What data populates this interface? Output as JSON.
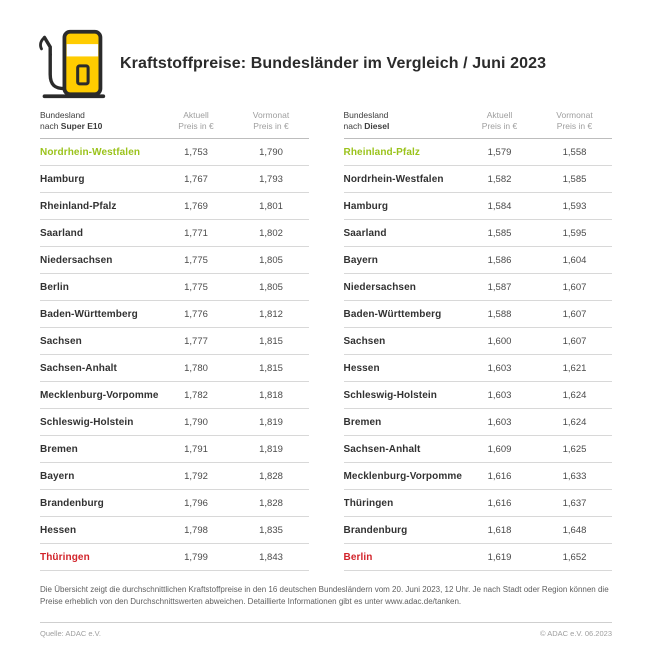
{
  "header": {
    "title": "Kraftstoffpreise: Bundesländer im Vergleich / Juni 2023"
  },
  "columns": {
    "current": "Aktuell",
    "previous": "Vormonat",
    "unit": "Preis in €"
  },
  "tables": [
    {
      "header_line1": "Bundesland",
      "header_line2_prefix": "nach ",
      "header_line2_bold": "Super E10",
      "rows": [
        {
          "state": "Nordrhein-Westfalen",
          "aktuell": "1,753",
          "vormonat": "1,790",
          "highlight": "green"
        },
        {
          "state": "Hamburg",
          "aktuell": "1,767",
          "vormonat": "1,793",
          "highlight": ""
        },
        {
          "state": "Rheinland-Pfalz",
          "aktuell": "1,769",
          "vormonat": "1,801",
          "highlight": ""
        },
        {
          "state": "Saarland",
          "aktuell": "1,771",
          "vormonat": "1,802",
          "highlight": ""
        },
        {
          "state": "Niedersachsen",
          "aktuell": "1,775",
          "vormonat": "1,805",
          "highlight": ""
        },
        {
          "state": "Berlin",
          "aktuell": "1,775",
          "vormonat": "1,805",
          "highlight": ""
        },
        {
          "state": "Baden-Württemberg",
          "aktuell": "1,776",
          "vormonat": "1,812",
          "highlight": ""
        },
        {
          "state": "Sachsen",
          "aktuell": "1,777",
          "vormonat": "1,815",
          "highlight": ""
        },
        {
          "state": "Sachsen-Anhalt",
          "aktuell": "1,780",
          "vormonat": "1,815",
          "highlight": ""
        },
        {
          "state": "Mecklenburg-Vorpommern",
          "aktuell": "1,782",
          "vormonat": "1,818",
          "highlight": ""
        },
        {
          "state": "Schleswig-Holstein",
          "aktuell": "1,790",
          "vormonat": "1,819",
          "highlight": ""
        },
        {
          "state": "Bremen",
          "aktuell": "1,791",
          "vormonat": "1,819",
          "highlight": ""
        },
        {
          "state": "Bayern",
          "aktuell": "1,792",
          "vormonat": "1,828",
          "highlight": ""
        },
        {
          "state": "Brandenburg",
          "aktuell": "1,796",
          "vormonat": "1,828",
          "highlight": ""
        },
        {
          "state": "Hessen",
          "aktuell": "1,798",
          "vormonat": "1,835",
          "highlight": ""
        },
        {
          "state": "Thüringen",
          "aktuell": "1,799",
          "vormonat": "1,843",
          "highlight": "red"
        }
      ]
    },
    {
      "header_line1": "Bundesland",
      "header_line2_prefix": "nach ",
      "header_line2_bold": "Diesel",
      "rows": [
        {
          "state": "Rheinland-Pfalz",
          "aktuell": "1,579",
          "vormonat": "1,558",
          "highlight": "green"
        },
        {
          "state": "Nordrhein-Westfalen",
          "aktuell": "1,582",
          "vormonat": "1,585",
          "highlight": ""
        },
        {
          "state": "Hamburg",
          "aktuell": "1,584",
          "vormonat": "1,593",
          "highlight": ""
        },
        {
          "state": "Saarland",
          "aktuell": "1,585",
          "vormonat": "1,595",
          "highlight": ""
        },
        {
          "state": "Bayern",
          "aktuell": "1,586",
          "vormonat": "1,604",
          "highlight": ""
        },
        {
          "state": "Niedersachsen",
          "aktuell": "1,587",
          "vormonat": "1,607",
          "highlight": ""
        },
        {
          "state": "Baden-Württemberg",
          "aktuell": "1,588",
          "vormonat": "1,607",
          "highlight": ""
        },
        {
          "state": "Sachsen",
          "aktuell": "1,600",
          "vormonat": "1,607",
          "highlight": ""
        },
        {
          "state": "Hessen",
          "aktuell": "1,603",
          "vormonat": "1,621",
          "highlight": ""
        },
        {
          "state": "Schleswig-Holstein",
          "aktuell": "1,603",
          "vormonat": "1,624",
          "highlight": ""
        },
        {
          "state": "Bremen",
          "aktuell": "1,603",
          "vormonat": "1,624",
          "highlight": ""
        },
        {
          "state": "Sachsen-Anhalt",
          "aktuell": "1,609",
          "vormonat": "1,625",
          "highlight": ""
        },
        {
          "state": "Mecklenburg-Vorpommern",
          "aktuell": "1,616",
          "vormonat": "1,633",
          "highlight": ""
        },
        {
          "state": "Thüringen",
          "aktuell": "1,616",
          "vormonat": "1,637",
          "highlight": ""
        },
        {
          "state": "Brandenburg",
          "aktuell": "1,618",
          "vormonat": "1,648",
          "highlight": ""
        },
        {
          "state": "Berlin",
          "aktuell": "1,619",
          "vormonat": "1,652",
          "highlight": "red"
        }
      ]
    }
  ],
  "note": {
    "text": "Die Übersicht zeigt die durchschnittlichen Kraftstoffpreise in den 16 deutschen Bundesländern vom 20. Juni 2023, 12 Uhr. Je nach Stadt oder Region können die Preise erheblich von den Durchschnittswerten abweichen. Detaillierte Informationen gibt es unter www.adac.de/tanken."
  },
  "footer": {
    "source": "Quelle: ADAC e.V.",
    "copyright": "© ADAC e.V. 06.2023"
  },
  "colors": {
    "green": "#9bc31c",
    "red": "#d2232a",
    "yellow": "#ffcc00",
    "outline": "#2b2b2b"
  },
  "chart_data": [
    {
      "type": "table",
      "title": "Bundesland nach Super E10",
      "columns": [
        "Bundesland",
        "Aktuell Preis in €",
        "Vormonat Preis in €"
      ],
      "rows": [
        [
          "Nordrhein-Westfalen",
          1.753,
          1.79
        ],
        [
          "Hamburg",
          1.767,
          1.793
        ],
        [
          "Rheinland-Pfalz",
          1.769,
          1.801
        ],
        [
          "Saarland",
          1.771,
          1.802
        ],
        [
          "Niedersachsen",
          1.775,
          1.805
        ],
        [
          "Berlin",
          1.775,
          1.805
        ],
        [
          "Baden-Württemberg",
          1.776,
          1.812
        ],
        [
          "Sachsen",
          1.777,
          1.815
        ],
        [
          "Sachsen-Anhalt",
          1.78,
          1.815
        ],
        [
          "Mecklenburg-Vorpommern",
          1.782,
          1.818
        ],
        [
          "Schleswig-Holstein",
          1.79,
          1.819
        ],
        [
          "Bremen",
          1.791,
          1.819
        ],
        [
          "Bayern",
          1.792,
          1.828
        ],
        [
          "Brandenburg",
          1.796,
          1.828
        ],
        [
          "Hessen",
          1.798,
          1.835
        ],
        [
          "Thüringen",
          1.799,
          1.843
        ]
      ],
      "highlights": {
        "cheapest_green": "Nordrhein-Westfalen",
        "most_expensive_red": "Thüringen"
      }
    },
    {
      "type": "table",
      "title": "Bundesland nach Diesel",
      "columns": [
        "Bundesland",
        "Aktuell Preis in €",
        "Vormonat Preis in €"
      ],
      "rows": [
        [
          "Rheinland-Pfalz",
          1.579,
          1.558
        ],
        [
          "Nordrhein-Westfalen",
          1.582,
          1.585
        ],
        [
          "Hamburg",
          1.584,
          1.593
        ],
        [
          "Saarland",
          1.585,
          1.595
        ],
        [
          "Bayern",
          1.586,
          1.604
        ],
        [
          "Niedersachsen",
          1.587,
          1.607
        ],
        [
          "Baden-Württemberg",
          1.588,
          1.607
        ],
        [
          "Sachsen",
          1.6,
          1.607
        ],
        [
          "Hessen",
          1.603,
          1.621
        ],
        [
          "Schleswig-Holstein",
          1.603,
          1.624
        ],
        [
          "Bremen",
          1.603,
          1.624
        ],
        [
          "Sachsen-Anhalt",
          1.609,
          1.625
        ],
        [
          "Mecklenburg-Vorpommern",
          1.616,
          1.633
        ],
        [
          "Thüringen",
          1.616,
          1.637
        ],
        [
          "Brandenburg",
          1.618,
          1.648
        ],
        [
          "Berlin",
          1.619,
          1.652
        ]
      ],
      "highlights": {
        "cheapest_green": "Rheinland-Pfalz",
        "most_expensive_red": "Berlin"
      }
    }
  ]
}
